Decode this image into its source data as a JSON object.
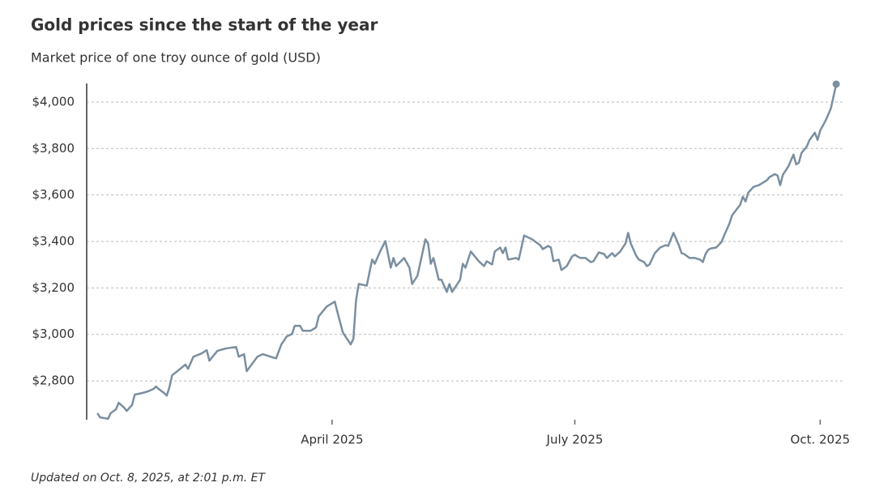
{
  "chart_data": {
    "type": "line",
    "title": "Gold prices since the start of the year",
    "subtitle": "Market price of one troy ounce of gold (USD)",
    "note": "Updated on Oct. 8, 2025, at 2:01 p.m. ET",
    "x": [
      3,
      4,
      7,
      8,
      10,
      11,
      13,
      14,
      16,
      17,
      20,
      22,
      24,
      25,
      26,
      28,
      29,
      30,
      31,
      33,
      36,
      37,
      39,
      42,
      44,
      45,
      48,
      51,
      55,
      56,
      58,
      59,
      63,
      65,
      68,
      70,
      72,
      74,
      76,
      77,
      79,
      80,
      83,
      85,
      86,
      89,
      92,
      93,
      95,
      97,
      98,
      99,
      100,
      101,
      104,
      106,
      107,
      109,
      111,
      113,
      114,
      115,
      118,
      120,
      121,
      123,
      124,
      126,
      127,
      128,
      129,
      131,
      132,
      134,
      135,
      136,
      137,
      139,
      140,
      141,
      143,
      146,
      148,
      149,
      151,
      152,
      154,
      155,
      156,
      157,
      160,
      161,
      162,
      163,
      166,
      169,
      170,
      172,
      173,
      174,
      176,
      177,
      179,
      181,
      182,
      184,
      186,
      188,
      189,
      191,
      193,
      194,
      196,
      197,
      199,
      201,
      202,
      203,
      205,
      206,
      208,
      209,
      210,
      212,
      214,
      216,
      217,
      219,
      221,
      222,
      223,
      225,
      227,
      229,
      230,
      231,
      232,
      233,
      235,
      237,
      238,
      240,
      241,
      244,
      245,
      246,
      247,
      249,
      251,
      254,
      255,
      257,
      258,
      259,
      260,
      262,
      264,
      265,
      266,
      267,
      269,
      270,
      272,
      273,
      274,
      276,
      278,
      279,
      280
    ],
    "series": [
      {
        "name": "Gold",
        "color": "#7a8fa0",
        "values": [
          2661,
          2643,
          2637,
          2661,
          2678,
          2706,
          2685,
          2671,
          2696,
          2741,
          2748,
          2755,
          2765,
          2776,
          2765,
          2748,
          2737,
          2772,
          2824,
          2842,
          2870,
          2852,
          2904,
          2918,
          2932,
          2887,
          2929,
          2939,
          2946,
          2904,
          2915,
          2842,
          2904,
          2915,
          2904,
          2897,
          2957,
          2991,
          3002,
          3037,
          3037,
          3016,
          3016,
          3030,
          3078,
          3120,
          3141,
          3096,
          3009,
          2974,
          2957,
          2981,
          3148,
          3217,
          3210,
          3322,
          3304,
          3357,
          3402,
          3287,
          3329,
          3294,
          3329,
          3287,
          3217,
          3252,
          3304,
          3409,
          3391,
          3304,
          3329,
          3235,
          3235,
          3183,
          3217,
          3183,
          3200,
          3235,
          3304,
          3287,
          3357,
          3315,
          3294,
          3315,
          3301,
          3357,
          3374,
          3350,
          3374,
          3322,
          3329,
          3322,
          3374,
          3426,
          3409,
          3384,
          3367,
          3381,
          3374,
          3315,
          3322,
          3277,
          3294,
          3336,
          3343,
          3329,
          3329,
          3311,
          3315,
          3353,
          3346,
          3329,
          3350,
          3336,
          3357,
          3391,
          3437,
          3391,
          3339,
          3322,
          3311,
          3294,
          3301,
          3350,
          3374,
          3384,
          3381,
          3437,
          3384,
          3350,
          3346,
          3329,
          3329,
          3322,
          3311,
          3346,
          3364,
          3370,
          3374,
          3398,
          3426,
          3478,
          3513,
          3558,
          3593,
          3572,
          3610,
          3635,
          3642,
          3663,
          3677,
          3690,
          3684,
          3642,
          3687,
          3722,
          3774,
          3732,
          3739,
          3781,
          3809,
          3837,
          3868,
          3837,
          3878,
          3920,
          3972,
          4024,
          4077
        ]
      }
    ],
    "xlim": [
      -1,
      283
    ],
    "xticks": [
      {
        "value": 91,
        "label": "April 2025"
      },
      {
        "value": 182,
        "label": "July 2025"
      },
      {
        "value": 274,
        "label": "Oct. 2025"
      }
    ],
    "ylim": [
      2633,
      4080
    ],
    "yticks": [
      {
        "value": 2800,
        "label": "$2,800"
      },
      {
        "value": 3000,
        "label": "$3,000"
      },
      {
        "value": 3200,
        "label": "$3,200"
      },
      {
        "value": 3400,
        "label": "$3,400"
      },
      {
        "value": 3600,
        "label": "$3,600"
      },
      {
        "value": 3800,
        "label": "$3,800"
      },
      {
        "value": 4000,
        "label": "$4,000"
      }
    ],
    "grid": true
  }
}
